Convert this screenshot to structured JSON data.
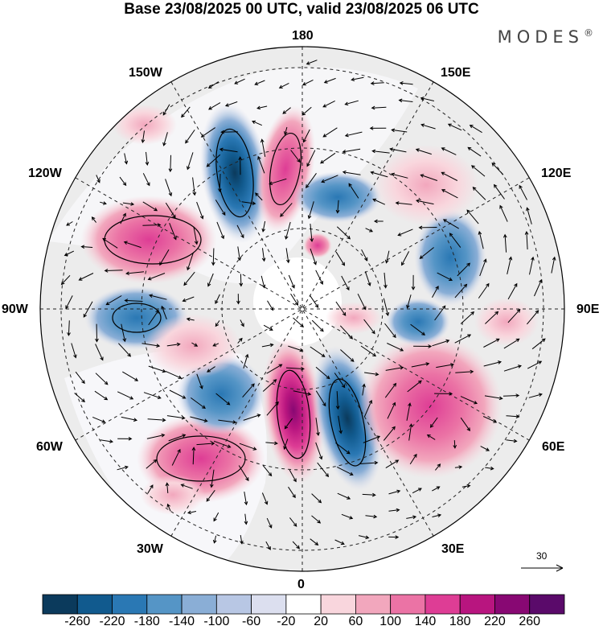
{
  "title": "Base 23/08/2025 00 UTC, valid 23/08/2025 06 UTC",
  "brand": "MODES",
  "brand_mark": "®",
  "map": {
    "projection": "north-polar-stereographic",
    "longitude_labels": {
      "top": "180",
      "bottom": "0",
      "left": "90W",
      "right": "90E",
      "upper_left_1": "150W",
      "upper_left_2": "120W",
      "upper_right_1": "150E",
      "upper_right_2": "120E",
      "lower_left_1": "60W",
      "lower_left_2": "30W",
      "lower_right_1": "60E",
      "lower_right_2": "30E"
    },
    "wind_reference_value": "30"
  },
  "colorbar": {
    "labels": [
      "-260",
      "-220",
      "-180",
      "-140",
      "-100",
      "-60",
      "-20",
      "20",
      "60",
      "100",
      "140",
      "180",
      "220",
      "260"
    ],
    "colors": [
      "#0b3a5c",
      "#115a8e",
      "#2a78b4",
      "#5595c6",
      "#8aaed6",
      "#b8c7e4",
      "#dcdfef",
      "#ffffff",
      "#f9d6dd",
      "#f2a7bd",
      "#eb73a5",
      "#de3d95",
      "#b8157f",
      "#880873",
      "#5a0a6a"
    ]
  },
  "anomaly_cells": [
    {
      "sign": "negative",
      "magnitude": 220
    },
    {
      "sign": "positive",
      "magnitude": 180
    },
    {
      "sign": "positive",
      "magnitude": 140
    },
    {
      "sign": "negative",
      "magnitude": 140
    },
    {
      "sign": "positive",
      "magnitude": 220
    },
    {
      "sign": "negative",
      "magnitude": 220
    },
    {
      "sign": "positive",
      "magnitude": 140
    },
    {
      "sign": "positive",
      "magnitude": 100
    },
    {
      "sign": "negative",
      "magnitude": 100
    },
    {
      "sign": "negative",
      "magnitude": 100
    },
    {
      "sign": "negative",
      "magnitude": 100
    },
    {
      "sign": "positive",
      "magnitude": 60
    },
    {
      "sign": "positive",
      "magnitude": 60
    },
    {
      "sign": "negative",
      "magnitude": 60
    }
  ]
}
